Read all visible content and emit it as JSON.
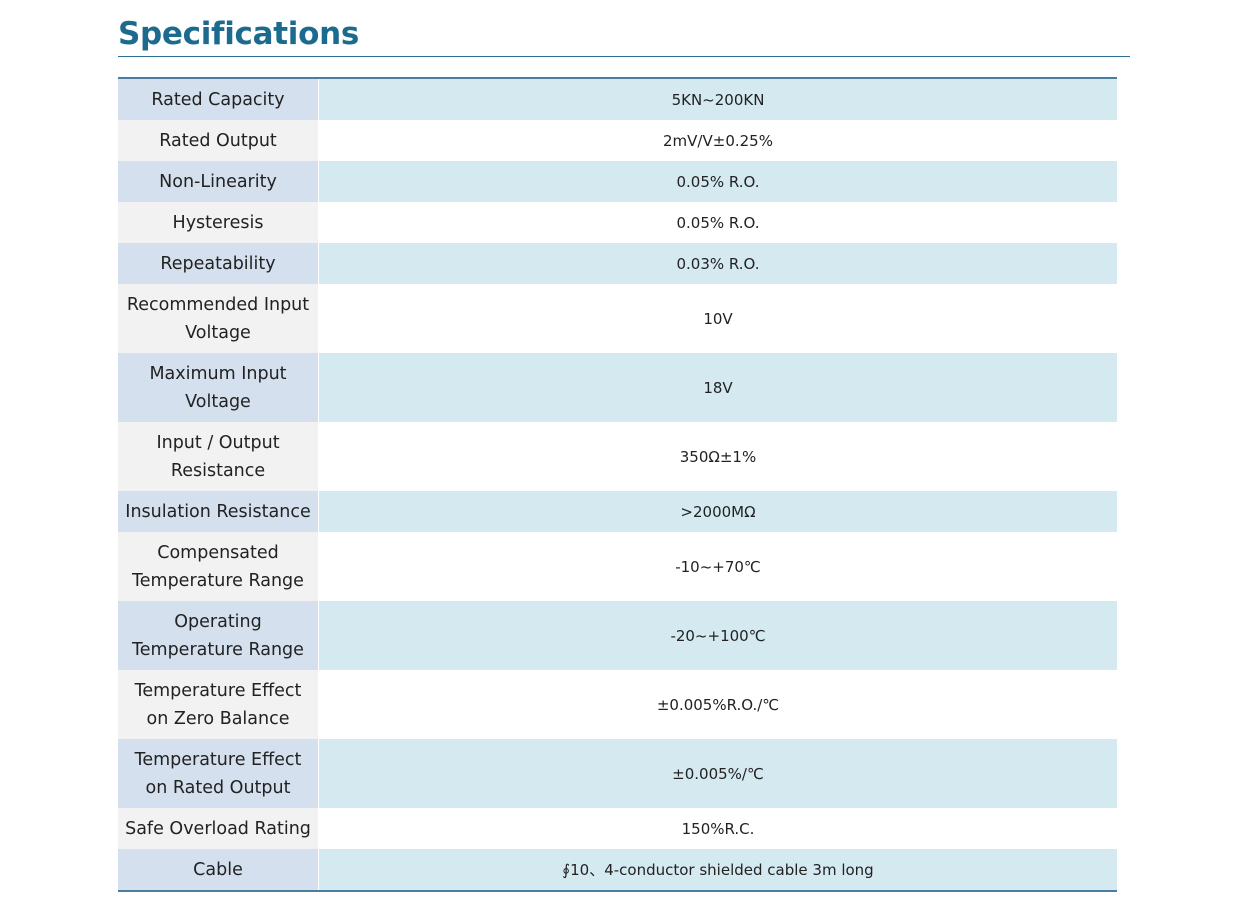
{
  "title": "Specifications",
  "specs": [
    {
      "label": "Rated Capacity",
      "value": "5KN~200KN"
    },
    {
      "label": "Rated Output",
      "value": "2mV/V±0.25%"
    },
    {
      "label": "Non-Linearity",
      "value": "0.05% R.O."
    },
    {
      "label": "Hysteresis",
      "value": "0.05% R.O."
    },
    {
      "label": "Repeatability",
      "value": "0.03% R.O."
    },
    {
      "label": "Recommended Input Voltage",
      "value": "10V"
    },
    {
      "label": "Maximum Input Voltage",
      "value": "18V"
    },
    {
      "label": "Input / Output Resistance",
      "value": "350Ω±1%"
    },
    {
      "label": "Insulation Resistance",
      "value": ">2000MΩ"
    },
    {
      "label": "Compensated Temperature Range",
      "value": "-10~+70℃"
    },
    {
      "label": "Operating Temperature Range",
      "value": "-20~+100℃"
    },
    {
      "label": "Temperature Effect on Zero Balance",
      "value": "±0.005%R.O./℃"
    },
    {
      "label": "Temperature Effect on Rated Output",
      "value": "±0.005%/℃"
    },
    {
      "label": "Safe Overload Rating",
      "value": "150%R.C."
    },
    {
      "label": "Cable",
      "value": "∮10、4-conductor shielded cable 3m long"
    }
  ]
}
